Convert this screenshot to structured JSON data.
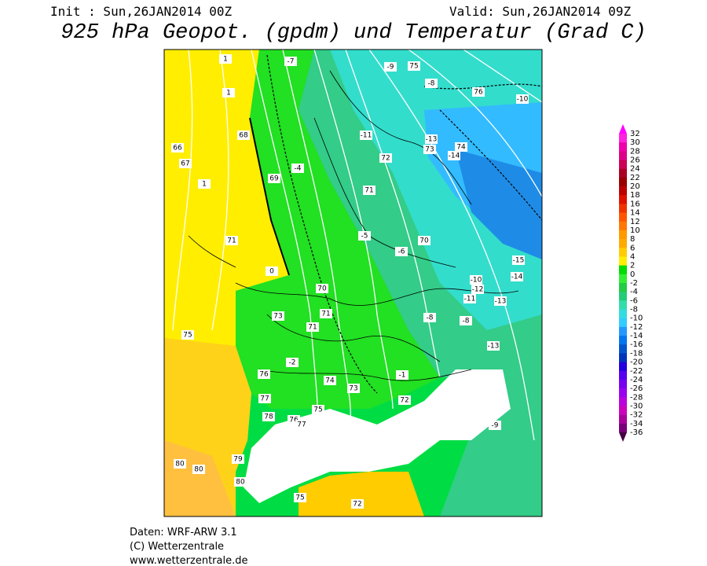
{
  "header": {
    "init": "Init : Sun,26JAN2014 00Z",
    "valid": "Valid: Sun,26JAN2014 09Z",
    "title": "925 hPa Geopot. (gpdm) und Temperatur (Grad C)"
  },
  "colorbar": {
    "labels": [
      32,
      30,
      28,
      26,
      24,
      22,
      20,
      18,
      16,
      14,
      12,
      10,
      8,
      6,
      4,
      2,
      0,
      -2,
      -4,
      -6,
      -8,
      -10,
      -12,
      -14,
      -16,
      -18,
      -20,
      -22,
      -24,
      -26,
      -28,
      -30,
      -32,
      -34,
      -36
    ],
    "colors": [
      "#ff00ff",
      "#ff22dd",
      "#ee00aa",
      "#dd0088",
      "#cc0055",
      "#aa0022",
      "#990000",
      "#bb0000",
      "#dd1100",
      "#ee3300",
      "#ff5500",
      "#ff7700",
      "#ff9900",
      "#ffaa00",
      "#ffcc00",
      "#ffee00",
      "#00dd00",
      "#33ee33",
      "#22cc44",
      "#22cc77",
      "#33ddaa",
      "#33dddd",
      "#33ccff",
      "#2299ff",
      "#0077ee",
      "#0055cc",
      "#0033bb",
      "#2200dd",
      "#5500ee",
      "#7700ee",
      "#9900ee",
      "#bb00dd",
      "#cc00bb",
      "#aa0099",
      "#770077",
      "#440044"
    ]
  },
  "map_labels": [
    "66",
    "67",
    "68",
    "69",
    "71",
    "75",
    "80",
    "80",
    "79",
    "80",
    "75",
    "72",
    "76",
    "77",
    "78",
    "76",
    "77",
    "75",
    "74",
    "73",
    "72",
    "71",
    "70",
    "73",
    "71",
    "70",
    "71",
    "72",
    "73",
    "74",
    "75",
    "76",
    "-7",
    "-9",
    "-8",
    "-10",
    "-11",
    "-13",
    "-14",
    "-15",
    "-14",
    "-13",
    "-12",
    "-11",
    "-10",
    "-8",
    "-6",
    "-5",
    "-4",
    "-2",
    "-1",
    "0",
    "1",
    "1",
    "1",
    "-9",
    "-8",
    "-13"
  ],
  "footer": [
    "Daten: WRF-ARW 3.1",
    "(C) Wetterzentrale",
    "www.wetterzentrale.de"
  ]
}
